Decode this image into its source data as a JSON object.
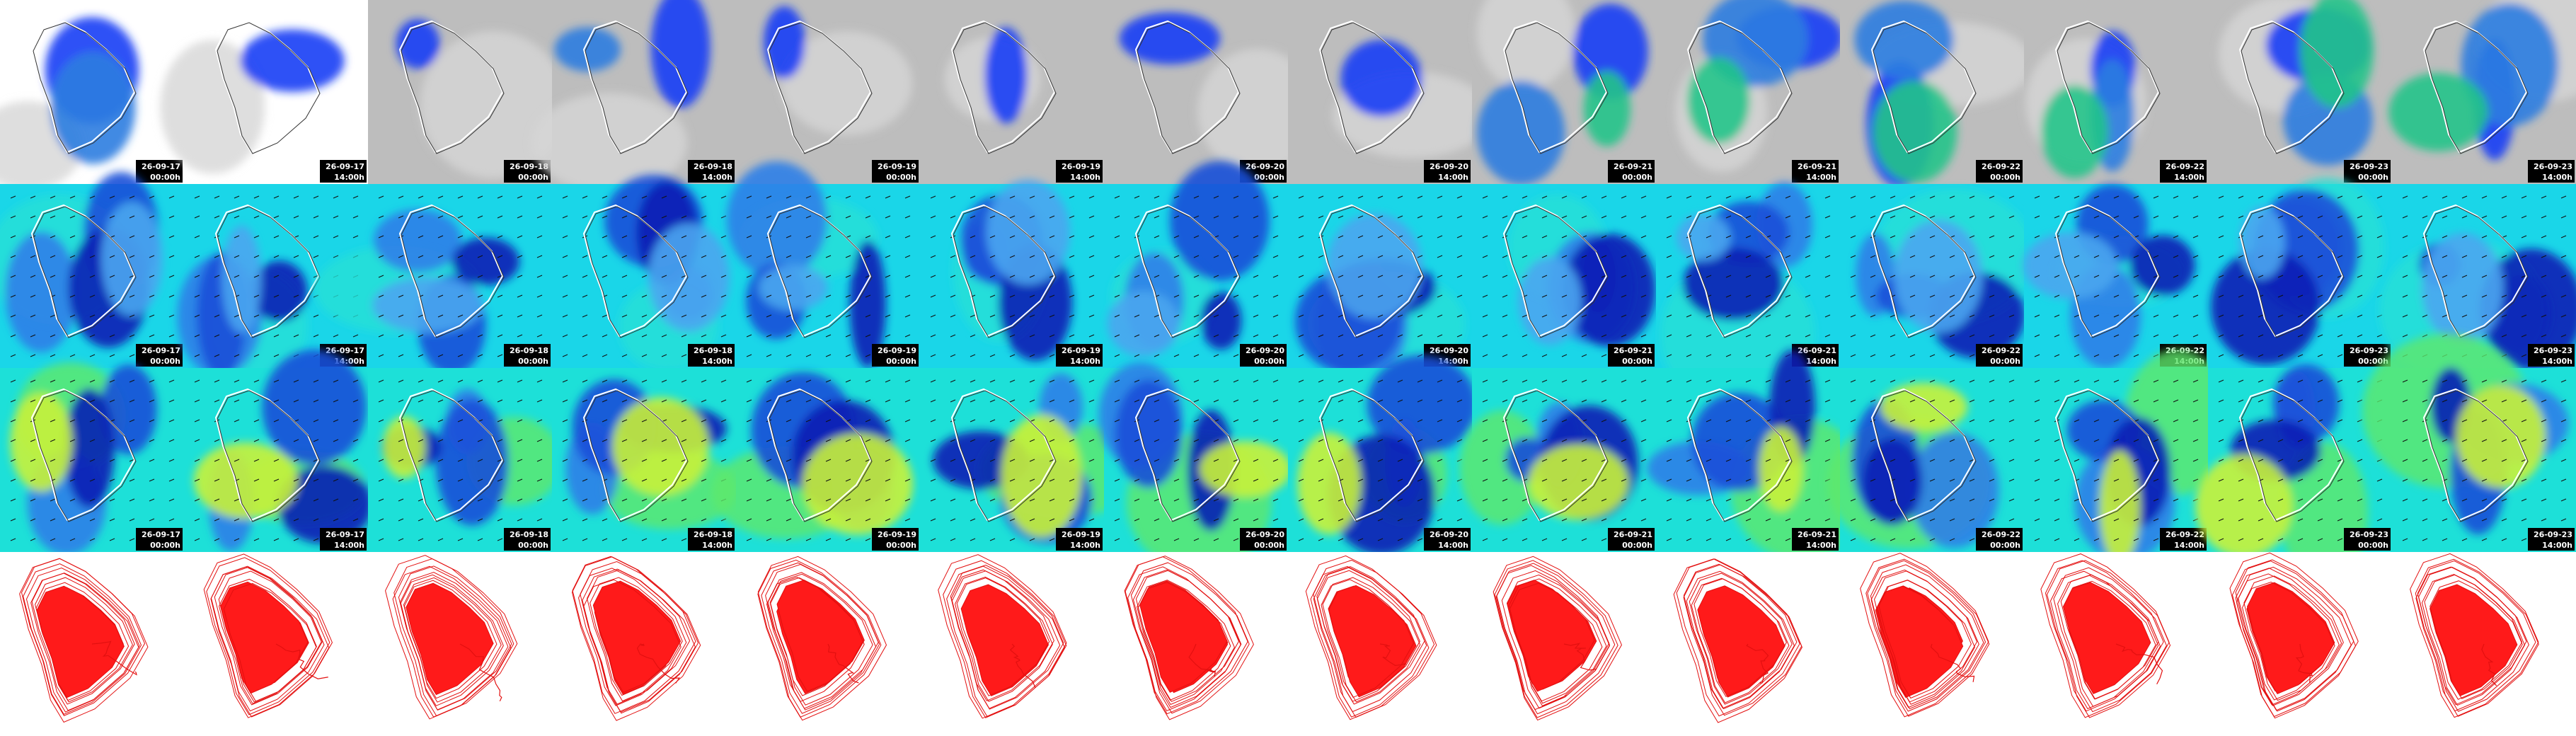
{
  "columns": [
    {
      "date": "26-09-17",
      "time": "00:00h"
    },
    {
      "date": "26-09-17",
      "time": "14:00h"
    },
    {
      "date": "26-09-18",
      "time": "00:00h"
    },
    {
      "date": "26-09-18",
      "time": "14:00h"
    },
    {
      "date": "26-09-19",
      "time": "00:00h"
    },
    {
      "date": "26-09-19",
      "time": "14:00h"
    },
    {
      "date": "26-09-20",
      "time": "00:00h"
    },
    {
      "date": "26-09-20",
      "time": "14:00h"
    },
    {
      "date": "26-09-21",
      "time": "00:00h"
    },
    {
      "date": "26-09-21",
      "time": "14:00h"
    },
    {
      "date": "26-09-22",
      "time": "00:00h"
    },
    {
      "date": "26-09-22",
      "time": "14:00h"
    },
    {
      "date": "26-09-23",
      "time": "00:00h"
    },
    {
      "date": "26-09-23",
      "time": "14:00h"
    }
  ]
}
